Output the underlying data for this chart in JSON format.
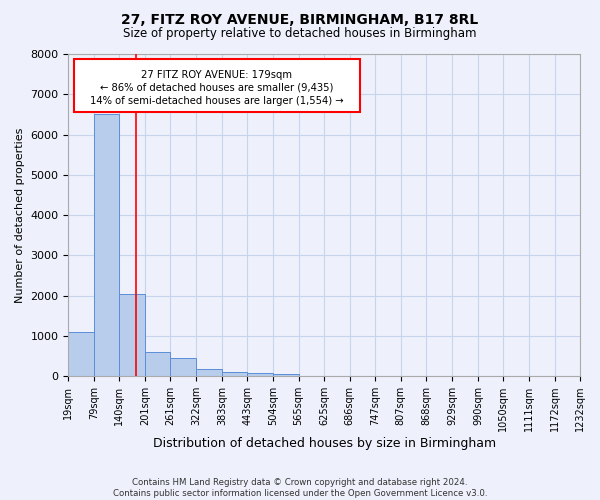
{
  "title1": "27, FITZ ROY AVENUE, BIRMINGHAM, B17 8RL",
  "title2": "Size of property relative to detached houses in Birmingham",
  "xlabel": "Distribution of detached houses by size in Birmingham",
  "ylabel": "Number of detached properties",
  "footer": "Contains HM Land Registry data © Crown copyright and database right 2024.\nContains public sector information licensed under the Open Government Licence v3.0.",
  "bin_edges": [
    19,
    79,
    140,
    201,
    261,
    322,
    383,
    443,
    504,
    565,
    625,
    686,
    747,
    807,
    868,
    929,
    990,
    1050,
    1111,
    1172,
    1232
  ],
  "counts": [
    1100,
    6500,
    2050,
    600,
    450,
    175,
    100,
    70,
    55,
    0,
    0,
    0,
    0,
    0,
    0,
    0,
    0,
    0,
    0,
    0
  ],
  "bar_color": "#b8ccec",
  "bar_edge_color": "#5b8dd9",
  "grid_color": "#c8d4ee",
  "vline_x": 179,
  "vline_color": "red",
  "annotation_line1": "27 FITZ ROY AVENUE: 179sqm",
  "annotation_line2": "← 86% of detached houses are smaller (9,435)",
  "annotation_line3": "14% of semi-detached houses are larger (1,554) →",
  "ylim": [
    0,
    8000
  ],
  "yticks": [
    0,
    1000,
    2000,
    3000,
    4000,
    5000,
    6000,
    7000,
    8000
  ],
  "bg_color": "#eef1fb"
}
